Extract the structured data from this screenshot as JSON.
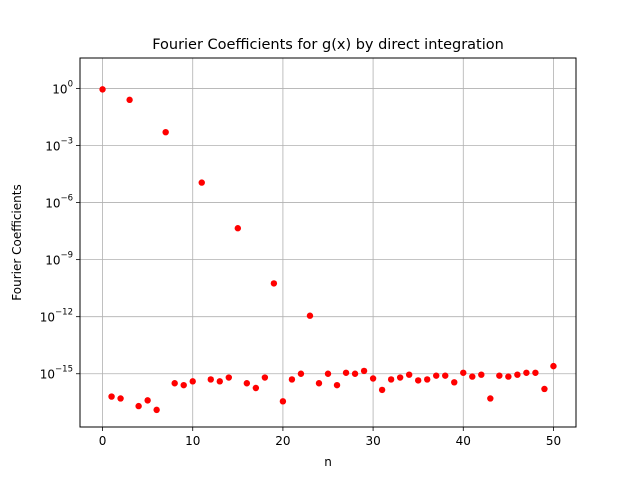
{
  "chart_data": {
    "type": "scatter",
    "title": "Fourier Coefficients for g(x) by direct integration",
    "xlabel": "n",
    "ylabel": "Fourier Coefficients",
    "xlim": [
      -2.5,
      52.5
    ],
    "ylim_log10": [
      -17.8,
      1.6
    ],
    "yscale": "log",
    "grid": true,
    "marker_color": "#ff0000",
    "x_ticks": [
      0,
      10,
      20,
      30,
      40,
      50
    ],
    "y_ticks": [
      {
        "exp": 0,
        "label": "10",
        "sup": "0"
      },
      {
        "exp": -3,
        "label": "10",
        "sup": "−3"
      },
      {
        "exp": -6,
        "label": "10",
        "sup": "−6"
      },
      {
        "exp": -9,
        "label": "10",
        "sup": "−9"
      },
      {
        "exp": -12,
        "label": "10",
        "sup": "−12"
      },
      {
        "exp": -15,
        "label": "10",
        "sup": "−15"
      }
    ],
    "points_log10": [
      [
        0,
        -0.05
      ],
      [
        1,
        -16.2
      ],
      [
        2,
        -16.3
      ],
      [
        3,
        -0.6
      ],
      [
        4,
        -16.7
      ],
      [
        5,
        -16.4
      ],
      [
        6,
        -16.9
      ],
      [
        7,
        -2.3
      ],
      [
        8,
        -15.5
      ],
      [
        9,
        -15.6
      ],
      [
        10,
        -15.4
      ],
      [
        11,
        -4.95
      ],
      [
        12,
        -15.3
      ],
      [
        13,
        -15.4
      ],
      [
        14,
        -15.2
      ],
      [
        15,
        -7.35
      ],
      [
        16,
        -15.5
      ],
      [
        17,
        -15.75
      ],
      [
        18,
        -15.2
      ],
      [
        19,
        -10.25
      ],
      [
        20,
        -16.45
      ],
      [
        21,
        -15.3
      ],
      [
        22,
        -15.0
      ],
      [
        23,
        -11.95
      ],
      [
        24,
        -15.5
      ],
      [
        25,
        -15.0
      ],
      [
        26,
        -15.6
      ],
      [
        27,
        -14.95
      ],
      [
        28,
        -15.0
      ],
      [
        29,
        -14.85
      ],
      [
        30,
        -15.25
      ],
      [
        31,
        -15.85
      ],
      [
        32,
        -15.3
      ],
      [
        33,
        -15.2
      ],
      [
        34,
        -15.05
      ],
      [
        35,
        -15.35
      ],
      [
        36,
        -15.3
      ],
      [
        37,
        -15.1
      ],
      [
        38,
        -15.1
      ],
      [
        39,
        -15.45
      ],
      [
        40,
        -14.95
      ],
      [
        41,
        -15.15
      ],
      [
        42,
        -15.05
      ],
      [
        43,
        -16.3
      ],
      [
        44,
        -15.1
      ],
      [
        45,
        -15.15
      ],
      [
        46,
        -15.05
      ],
      [
        47,
        -14.95
      ],
      [
        48,
        -14.95
      ],
      [
        49,
        -15.8
      ],
      [
        50,
        -14.6
      ]
    ]
  }
}
